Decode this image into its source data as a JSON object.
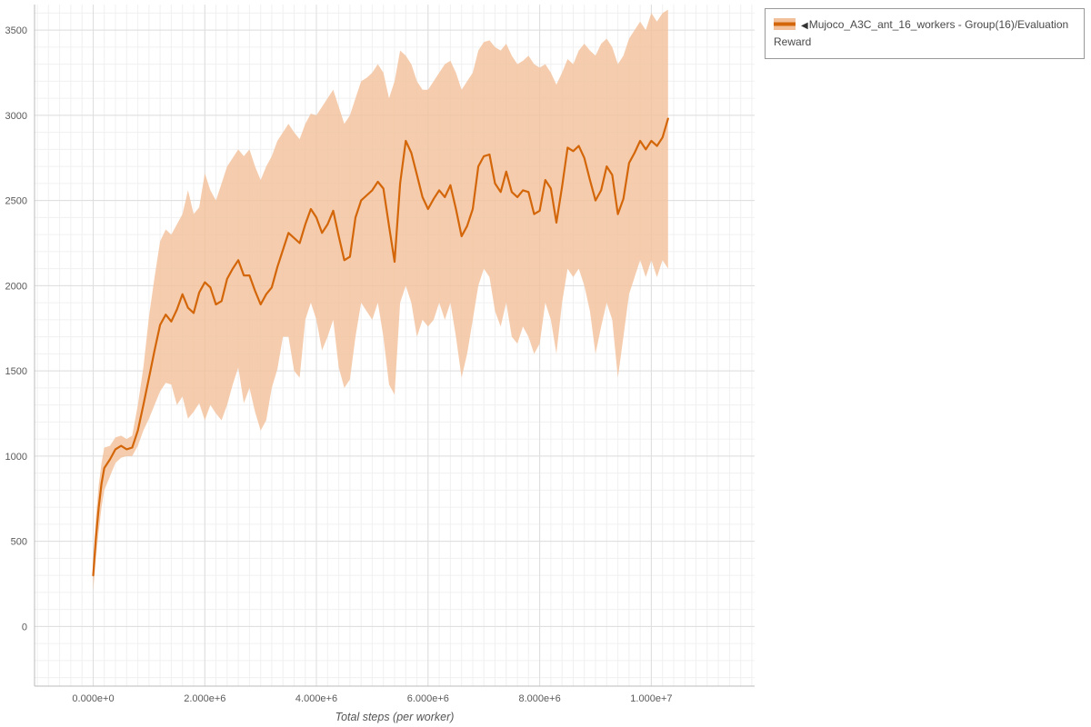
{
  "page": {
    "background": "#ffffff"
  },
  "legend": {
    "collapse_icon": "◀",
    "label": "Mujoco_A3C_ant_16_workers - Group(16)/Evaluation Reward",
    "line_color": "#d4660a",
    "band_color": "#f2c09a"
  },
  "chart_data": {
    "type": "line",
    "title": "",
    "xlabel": "Total steps (per worker)",
    "ylabel": "",
    "grid": true,
    "legend_position": "top-right",
    "xlim": [
      -1050000,
      11850000
    ],
    "ylim": [
      -350,
      3650
    ],
    "x_ticks": {
      "values": [
        0,
        2000000,
        4000000,
        6000000,
        8000000,
        10000000
      ],
      "labels": [
        "0.000e+0",
        "2.000e+6",
        "4.000e+6",
        "6.000e+6",
        "8.000e+6",
        "1.000e+7"
      ]
    },
    "y_ticks": {
      "values": [
        0,
        500,
        1000,
        1500,
        2000,
        2500,
        3000,
        3500
      ],
      "labels": [
        "0",
        "500",
        "1000",
        "1500",
        "2000",
        "2500",
        "3000",
        "3500"
      ]
    },
    "series": [
      {
        "name": "Mujoco_A3C_ant_16_workers - Group(16)/Evaluation Reward",
        "color": "#d4660a",
        "band_color": "#f2c09a",
        "x": [
          0,
          50000,
          100000,
          150000,
          200000,
          300000,
          400000,
          500000,
          600000,
          700000,
          800000,
          900000,
          1000000,
          1100000,
          1200000,
          1300000,
          1400000,
          1500000,
          1600000,
          1700000,
          1800000,
          1900000,
          2000000,
          2100000,
          2200000,
          2300000,
          2400000,
          2500000,
          2600000,
          2700000,
          2800000,
          2900000,
          3000000,
          3100000,
          3200000,
          3300000,
          3400000,
          3500000,
          3600000,
          3700000,
          3800000,
          3900000,
          4000000,
          4100000,
          4200000,
          4300000,
          4400000,
          4500000,
          4600000,
          4700000,
          4800000,
          4900000,
          5000000,
          5100000,
          5200000,
          5300000,
          5400000,
          5500000,
          5600000,
          5700000,
          5800000,
          5900000,
          6000000,
          6100000,
          6200000,
          6300000,
          6400000,
          6500000,
          6600000,
          6700000,
          6800000,
          6900000,
          7000000,
          7100000,
          7200000,
          7300000,
          7400000,
          7500000,
          7600000,
          7700000,
          7800000,
          7900000,
          8000000,
          8100000,
          8200000,
          8300000,
          8400000,
          8500000,
          8600000,
          8700000,
          8800000,
          8900000,
          9000000,
          9100000,
          9200000,
          9300000,
          9400000,
          9500000,
          9600000,
          9700000,
          9800000,
          9900000,
          10000000,
          10100000,
          10200000,
          10300000
        ],
        "mean": [
          300,
          520,
          700,
          840,
          930,
          980,
          1040,
          1060,
          1040,
          1050,
          1150,
          1300,
          1460,
          1620,
          1770,
          1830,
          1790,
          1860,
          1950,
          1870,
          1840,
          1960,
          2020,
          1990,
          1890,
          1910,
          2040,
          2100,
          2150,
          2060,
          2060,
          1970,
          1890,
          1950,
          1990,
          2110,
          2210,
          2310,
          2280,
          2250,
          2360,
          2450,
          2400,
          2310,
          2360,
          2440,
          2290,
          2150,
          2170,
          2400,
          2500,
          2530,
          2560,
          2610,
          2570,
          2350,
          2140,
          2600,
          2850,
          2780,
          2650,
          2520,
          2450,
          2510,
          2560,
          2520,
          2590,
          2450,
          2290,
          2350,
          2450,
          2700,
          2760,
          2770,
          2600,
          2550,
          2670,
          2550,
          2520,
          2560,
          2550,
          2420,
          2440,
          2620,
          2570,
          2370,
          2580,
          2810,
          2790,
          2820,
          2750,
          2620,
          2500,
          2560,
          2700,
          2650,
          2420,
          2510,
          2720,
          2780,
          2850,
          2800,
          2850,
          2820,
          2870,
          2980
        ],
        "low": [
          210,
          400,
          560,
          700,
          800,
          880,
          960,
          990,
          1000,
          1000,
          1060,
          1150,
          1220,
          1300,
          1380,
          1430,
          1420,
          1300,
          1350,
          1220,
          1260,
          1310,
          1210,
          1300,
          1250,
          1210,
          1300,
          1420,
          1520,
          1310,
          1400,
          1260,
          1150,
          1210,
          1400,
          1510,
          1700,
          1700,
          1500,
          1460,
          1800,
          1900,
          1800,
          1620,
          1700,
          1800,
          1520,
          1400,
          1450,
          1700,
          1900,
          1850,
          1800,
          1900,
          1700,
          1420,
          1360,
          1900,
          2000,
          1900,
          1700,
          1800,
          1760,
          1800,
          1900,
          1800,
          1900,
          1700,
          1460,
          1600,
          1800,
          2000,
          2100,
          2050,
          1850,
          1760,
          1900,
          1700,
          1660,
          1760,
          1700,
          1600,
          1660,
          1900,
          1800,
          1600,
          1900,
          2100,
          2050,
          2100,
          2000,
          1850,
          1600,
          1760,
          1900,
          1800,
          1460,
          1700,
          1950,
          2050,
          2150,
          2050,
          2150,
          2050,
          2150,
          2100
        ],
        "high": [
          390,
          640,
          830,
          960,
          1050,
          1060,
          1110,
          1120,
          1100,
          1120,
          1300,
          1520,
          1820,
          2050,
          2260,
          2330,
          2300,
          2360,
          2420,
          2560,
          2420,
          2460,
          2660,
          2560,
          2500,
          2600,
          2700,
          2750,
          2800,
          2760,
          2800,
          2700,
          2620,
          2700,
          2760,
          2850,
          2900,
          2950,
          2900,
          2860,
          2950,
          3010,
          3000,
          3050,
          3100,
          3150,
          3050,
          2950,
          3000,
          3100,
          3200,
          3220,
          3250,
          3300,
          3250,
          3100,
          3200,
          3380,
          3350,
          3300,
          3200,
          3150,
          3150,
          3200,
          3250,
          3300,
          3320,
          3250,
          3150,
          3200,
          3250,
          3380,
          3430,
          3440,
          3400,
          3380,
          3420,
          3350,
          3300,
          3320,
          3350,
          3300,
          3280,
          3300,
          3250,
          3180,
          3250,
          3330,
          3300,
          3380,
          3420,
          3380,
          3350,
          3420,
          3450,
          3400,
          3300,
          3350,
          3450,
          3500,
          3550,
          3500,
          3600,
          3550,
          3600,
          3620
        ]
      }
    ]
  }
}
